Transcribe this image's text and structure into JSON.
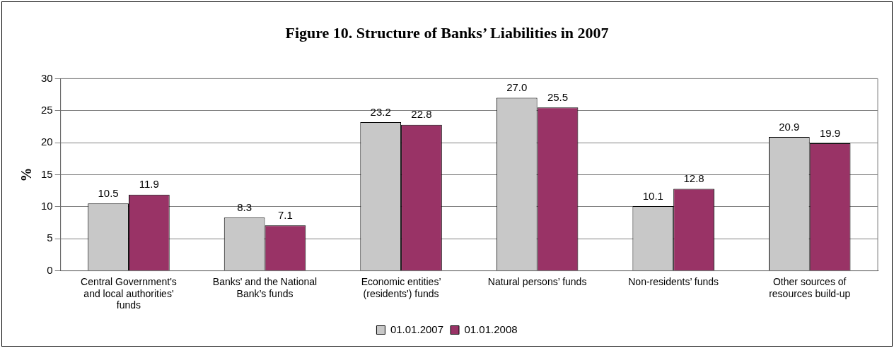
{
  "chart_data": {
    "type": "bar",
    "title": "Figure 10. Structure of Banks’ Liabilities in 2007",
    "ylabel": "%",
    "categories": [
      "Central Government's and local authorities' funds",
      "Banks' and the National Bank’s funds",
      "Economic entities’ (residents') funds",
      "Natural persons’ funds",
      "Non-residents’ funds",
      "Other sources of resources build-up"
    ],
    "series": [
      {
        "name": "01.01.2007",
        "color": "#c8c8c8",
        "values": [
          10.5,
          8.3,
          23.2,
          27,
          10.1,
          20.9
        ],
        "value_labels": [
          "10.5",
          "8.3",
          "23.2",
          "27.0",
          "10.1",
          "20.9"
        ]
      },
      {
        "name": "01.01.2008",
        "color": "#993366",
        "values": [
          11.9,
          7.1,
          22.8,
          25.5,
          12.8,
          19.9
        ],
        "value_labels": [
          "11.9",
          "7.1",
          "22.8",
          "25.5",
          "12.8",
          "19.9"
        ]
      }
    ],
    "ylim": [
      0,
      30
    ],
    "yticks": [
      0,
      5,
      10,
      15,
      20,
      25,
      30
    ],
    "grid": "y",
    "legend": "bottom"
  }
}
